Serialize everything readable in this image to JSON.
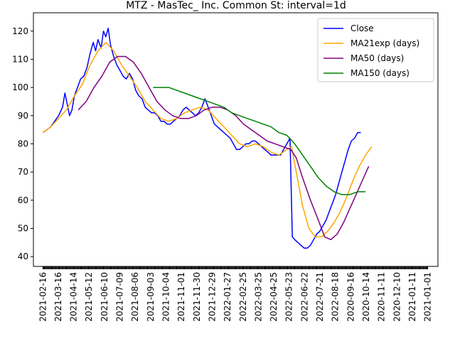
{
  "chart_data": {
    "type": "line",
    "title": "MTZ - MasTec_ Inc. Common St: interval=1d",
    "xlabel": "",
    "ylabel": "",
    "ylim": [
      36.5,
      126.5
    ],
    "yticks": [
      40,
      50,
      60,
      70,
      80,
      90,
      100,
      110,
      120
    ],
    "x_tick_labels": [
      "2021-02-16",
      "2021-03-16",
      "2021-04-14",
      "2021-05-12",
      "2021-06-10",
      "2021-07-09",
      "2021-08-06",
      "2021-09-03",
      "2021-10-04",
      "2021-11-01",
      "2021-11-30",
      "2021-12-29",
      "2022-01-27",
      "2022-02-25",
      "2022-03-25",
      "2022-04-25",
      "2022-05-23",
      "2022-06-22",
      "2022-07-21",
      "2022-08-18",
      "2020-09-16",
      "2020-10-14",
      "2020-11-11",
      "2020-12-10",
      "2021-01-11",
      "2021-01-01"
    ],
    "x_count": 490,
    "grid": false,
    "legend_position": "top-right",
    "series": [
      {
        "name": "Close",
        "color": "#0000ff",
        "points": [
          [
            0,
            84
          ],
          [
            5,
            85
          ],
          [
            10,
            86
          ],
          [
            15,
            88
          ],
          [
            20,
            90
          ],
          [
            25,
            93
          ],
          [
            28,
            98
          ],
          [
            31,
            94
          ],
          [
            34,
            90
          ],
          [
            37,
            92
          ],
          [
            40,
            97
          ],
          [
            44,
            100
          ],
          [
            48,
            103
          ],
          [
            52,
            104
          ],
          [
            56,
            107
          ],
          [
            60,
            112
          ],
          [
            64,
            116
          ],
          [
            67,
            113
          ],
          [
            70,
            117
          ],
          [
            74,
            114
          ],
          [
            77,
            120
          ],
          [
            80,
            118
          ],
          [
            83,
            121
          ],
          [
            86,
            115
          ],
          [
            90,
            111
          ],
          [
            94,
            108
          ],
          [
            98,
            106
          ],
          [
            102,
            104
          ],
          [
            106,
            103
          ],
          [
            110,
            105
          ],
          [
            114,
            103
          ],
          [
            118,
            99
          ],
          [
            122,
            97
          ],
          [
            126,
            96
          ],
          [
            130,
            93
          ],
          [
            134,
            92
          ],
          [
            138,
            91
          ],
          [
            142,
            91
          ],
          [
            146,
            90
          ],
          [
            150,
            88
          ],
          [
            154,
            88
          ],
          [
            158,
            87
          ],
          [
            162,
            87
          ],
          [
            166,
            88
          ],
          [
            170,
            89
          ],
          [
            174,
            90
          ],
          [
            178,
            92
          ],
          [
            182,
            93
          ],
          [
            186,
            92
          ],
          [
            190,
            91
          ],
          [
            194,
            90
          ],
          [
            198,
            91
          ],
          [
            202,
            93
          ],
          [
            206,
            96
          ],
          [
            210,
            93
          ],
          [
            214,
            90
          ],
          [
            218,
            87
          ],
          [
            222,
            86
          ],
          [
            226,
            85
          ],
          [
            230,
            84
          ],
          [
            234,
            83
          ],
          [
            238,
            82
          ],
          [
            242,
            80
          ],
          [
            246,
            78
          ],
          [
            250,
            78
          ],
          [
            254,
            79
          ],
          [
            258,
            80
          ],
          [
            262,
            80
          ],
          [
            266,
            81
          ],
          [
            270,
            81
          ],
          [
            274,
            80
          ],
          [
            278,
            79
          ],
          [
            282,
            78
          ],
          [
            286,
            77
          ],
          [
            290,
            76
          ],
          [
            294,
            76
          ],
          [
            298,
            76
          ],
          [
            302,
            76
          ],
          [
            306,
            78
          ],
          [
            310,
            80
          ],
          [
            314,
            82
          ],
          [
            317,
            47
          ],
          [
            320,
            46
          ],
          [
            324,
            45
          ],
          [
            328,
            44
          ],
          [
            332,
            43
          ],
          [
            336,
            43
          ],
          [
            340,
            44
          ],
          [
            344,
            46
          ],
          [
            348,
            48
          ],
          [
            352,
            49
          ],
          [
            356,
            51
          ],
          [
            360,
            53
          ],
          [
            364,
            56
          ],
          [
            368,
            59
          ],
          [
            372,
            62
          ],
          [
            376,
            66
          ],
          [
            380,
            70
          ],
          [
            384,
            74
          ],
          [
            388,
            78
          ],
          [
            392,
            81
          ],
          [
            396,
            82
          ],
          [
            400,
            84
          ],
          [
            404,
            84
          ]
        ]
      },
      {
        "name": "MA21exp (days)",
        "color": "#ffa500",
        "points": [
          [
            0,
            84
          ],
          [
            10,
            86
          ],
          [
            20,
            89
          ],
          [
            30,
            92
          ],
          [
            40,
            97
          ],
          [
            50,
            101
          ],
          [
            60,
            108
          ],
          [
            70,
            113
          ],
          [
            80,
            116
          ],
          [
            90,
            113
          ],
          [
            100,
            108
          ],
          [
            110,
            104
          ],
          [
            120,
            100
          ],
          [
            130,
            95
          ],
          [
            140,
            92
          ],
          [
            150,
            89
          ],
          [
            160,
            88
          ],
          [
            170,
            89
          ],
          [
            180,
            91
          ],
          [
            190,
            92
          ],
          [
            200,
            93
          ],
          [
            210,
            92
          ],
          [
            220,
            89
          ],
          [
            230,
            86
          ],
          [
            240,
            83
          ],
          [
            250,
            80
          ],
          [
            260,
            79
          ],
          [
            270,
            80
          ],
          [
            280,
            79
          ],
          [
            290,
            77
          ],
          [
            300,
            76
          ],
          [
            310,
            78
          ],
          [
            316,
            79
          ],
          [
            322,
            70
          ],
          [
            330,
            58
          ],
          [
            338,
            50
          ],
          [
            346,
            47
          ],
          [
            354,
            47
          ],
          [
            362,
            49
          ],
          [
            370,
            52
          ],
          [
            378,
            56
          ],
          [
            386,
            61
          ],
          [
            394,
            67
          ],
          [
            402,
            72
          ],
          [
            410,
            76
          ],
          [
            418,
            79
          ]
        ]
      },
      {
        "name": "MA50 (days)",
        "color": "#800080",
        "points": [
          [
            45,
            92
          ],
          [
            55,
            95
          ],
          [
            65,
            100
          ],
          [
            75,
            104
          ],
          [
            85,
            109
          ],
          [
            95,
            111
          ],
          [
            105,
            111
          ],
          [
            115,
            109
          ],
          [
            125,
            105
          ],
          [
            135,
            100
          ],
          [
            145,
            95
          ],
          [
            155,
            92
          ],
          [
            165,
            90
          ],
          [
            175,
            89
          ],
          [
            185,
            89
          ],
          [
            195,
            90
          ],
          [
            205,
            92
          ],
          [
            215,
            93
          ],
          [
            225,
            93
          ],
          [
            235,
            92
          ],
          [
            245,
            90
          ],
          [
            255,
            87
          ],
          [
            265,
            85
          ],
          [
            275,
            83
          ],
          [
            285,
            81
          ],
          [
            295,
            80
          ],
          [
            305,
            79
          ],
          [
            315,
            78
          ],
          [
            322,
            75
          ],
          [
            330,
            68
          ],
          [
            340,
            60
          ],
          [
            350,
            53
          ],
          [
            358,
            47
          ],
          [
            366,
            46
          ],
          [
            374,
            48
          ],
          [
            382,
            52
          ],
          [
            390,
            57
          ],
          [
            398,
            62
          ],
          [
            406,
            67
          ],
          [
            414,
            72
          ]
        ]
      },
      {
        "name": "MA150 (days)",
        "color": "#008000",
        "points": [
          [
            140,
            100
          ],
          [
            150,
            100
          ],
          [
            160,
            100
          ],
          [
            170,
            99
          ],
          [
            180,
            98
          ],
          [
            190,
            97
          ],
          [
            200,
            96
          ],
          [
            210,
            95
          ],
          [
            220,
            94
          ],
          [
            230,
            93
          ],
          [
            240,
            91
          ],
          [
            250,
            90
          ],
          [
            260,
            89
          ],
          [
            270,
            88
          ],
          [
            280,
            87
          ],
          [
            290,
            86
          ],
          [
            300,
            84
          ],
          [
            310,
            83
          ],
          [
            320,
            80
          ],
          [
            330,
            76
          ],
          [
            340,
            72
          ],
          [
            350,
            68
          ],
          [
            360,
            65
          ],
          [
            370,
            63
          ],
          [
            380,
            62
          ],
          [
            390,
            62
          ],
          [
            400,
            63
          ],
          [
            410,
            63
          ]
        ]
      }
    ]
  }
}
